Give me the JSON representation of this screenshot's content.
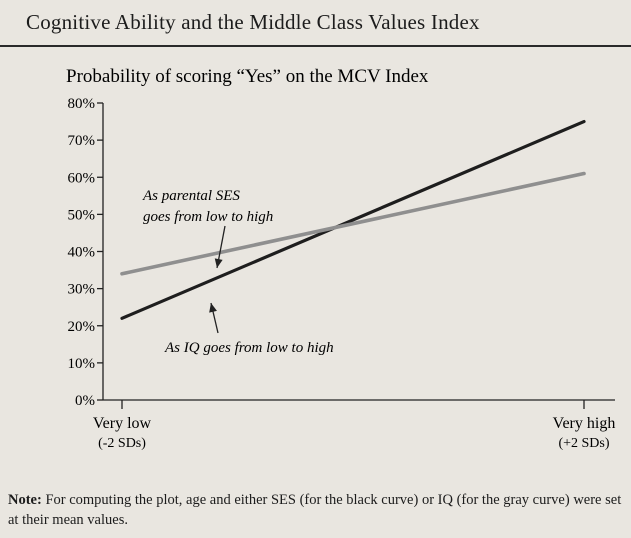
{
  "title": "Cognitive Ability and the Middle Class Values Index",
  "note": {
    "label": "Note:",
    "text": " For computing the plot, age and either SES (for the black curve) or IQ (for the gray curve) were set at their mean values."
  },
  "colors": {
    "iq_line": "#1e1e1e",
    "ses_line": "#8f8f8f",
    "axis": "#222222",
    "background": "#e9e6e0"
  },
  "chart_data": {
    "type": "line",
    "title": "Cognitive Ability and the Middle Class Values Index",
    "ylabel": "Probability of scoring “Yes” on the MCV Index",
    "yticks": [
      "0%",
      "10%",
      "20%",
      "30%",
      "40%",
      "50%",
      "60%",
      "70%",
      "80%"
    ],
    "ylim": [
      0,
      80
    ],
    "x_categories": [
      {
        "name": "Very low",
        "sub": "(-2 SDs)"
      },
      {
        "name": "Very high",
        "sub": "(+2 SDs)"
      }
    ],
    "xlim": [
      -2,
      2
    ],
    "series": [
      {
        "key": "iq",
        "color": "#1e1e1e",
        "x": [
          -2,
          2
        ],
        "y": [
          22,
          75
        ]
      },
      {
        "key": "ses",
        "color": "#8f8f8f",
        "x": [
          -2,
          2
        ],
        "y": [
          34,
          61
        ]
      }
    ],
    "annotations": [
      {
        "lines": [
          "As parental SES",
          "goes from low to high"
        ],
        "points_to": "ses"
      },
      {
        "lines": [
          "As IQ goes from low to high"
        ],
        "points_to": "iq"
      }
    ],
    "grid": false
  }
}
